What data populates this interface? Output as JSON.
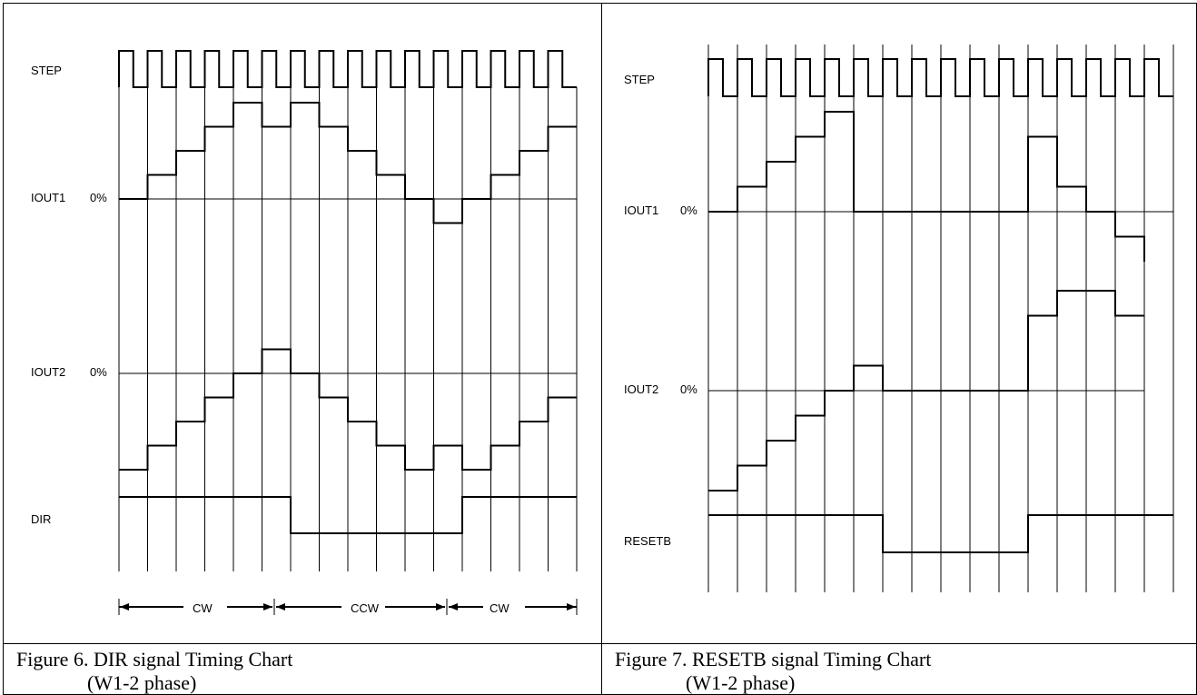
{
  "figure_a": {
    "caption_line1": "Figure 6. DIR signal Timing Chart",
    "caption_line2": "(W1-2 phase)",
    "labels": {
      "step": "STEP",
      "iout1": "IOUT1",
      "iout1_zero": "0%",
      "iout2": "IOUT2",
      "iout2_zero": "0%",
      "dir": "DIR",
      "cw_left": "CW",
      "ccw": "CCW",
      "cw_right": "CW"
    },
    "signals": {
      "iout1_levels": [
        0,
        1,
        2,
        3,
        4,
        3,
        4,
        3,
        2,
        1,
        0,
        -1,
        0,
        1,
        2,
        3
      ],
      "iout2_levels": [
        -4,
        -3,
        -2,
        -1,
        0,
        1,
        0,
        -1,
        -2,
        -3,
        -4,
        -3,
        -4,
        -3,
        -2,
        -1
      ],
      "dir_levels": [
        1,
        1,
        1,
        1,
        1,
        1,
        0,
        0,
        0,
        0,
        0,
        0,
        1,
        1,
        1,
        1
      ]
    }
  },
  "figure_b": {
    "caption_line1": "Figure 7. RESETB signal Timing Chart",
    "caption_line2": "(W1-2 phase)",
    "labels": {
      "step": "STEP",
      "iout1": "IOUT1",
      "iout1_zero": "0%",
      "iout2": "IOUT2",
      "iout2_zero": "0%",
      "resetb": "RESETB"
    },
    "signals": {
      "iout1_levels": [
        0,
        1,
        2,
        3,
        4,
        0,
        0,
        0,
        0,
        0,
        0,
        3,
        1,
        0,
        -1,
        -2
      ],
      "iout2_levels": [
        -4,
        -3,
        -2,
        -1,
        0,
        1,
        0,
        0,
        0,
        0,
        0,
        3,
        4,
        4,
        3,
        3
      ],
      "resetb_levels": [
        1,
        1,
        1,
        1,
        1,
        1,
        0,
        0,
        0,
        0,
        0,
        1,
        1,
        1,
        1,
        1
      ]
    }
  }
}
